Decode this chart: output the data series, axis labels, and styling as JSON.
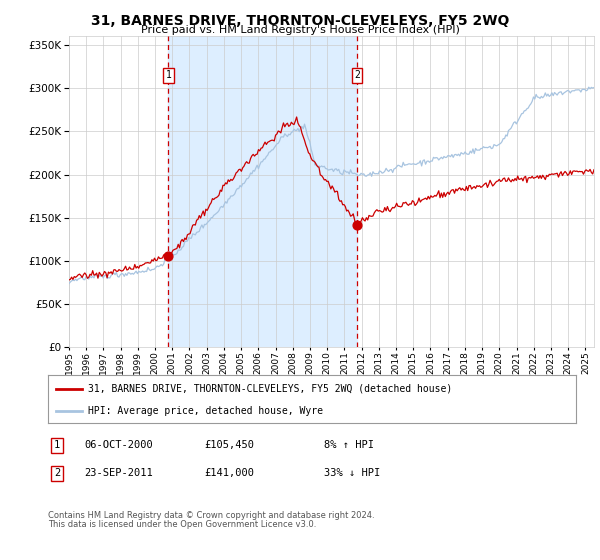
{
  "title": "31, BARNES DRIVE, THORNTON-CLEVELEYS, FY5 2WQ",
  "subtitle": "Price paid vs. HM Land Registry's House Price Index (HPI)",
  "legend_line1": "31, BARNES DRIVE, THORNTON-CLEVELEYS, FY5 2WQ (detached house)",
  "legend_line2": "HPI: Average price, detached house, Wyre",
  "annotation1_date": "06-OCT-2000",
  "annotation1_price": "£105,450",
  "annotation1_hpi": "8% ↑ HPI",
  "annotation2_date": "23-SEP-2011",
  "annotation2_price": "£141,000",
  "annotation2_hpi": "33% ↓ HPI",
  "footnote1": "Contains HM Land Registry data © Crown copyright and database right 2024.",
  "footnote2": "This data is licensed under the Open Government Licence v3.0.",
  "sale1_year": 2000.77,
  "sale1_price": 105450,
  "sale2_year": 2011.73,
  "sale2_price": 141000,
  "hpi_color": "#a8c4e0",
  "price_color": "#cc0000",
  "bg_color": "#ffffff",
  "grid_color": "#cccccc",
  "shade_color": "#ddeeff",
  "dashed_color": "#cc0000",
  "ymax": 360000,
  "ymin": 0,
  "xmin": 1995,
  "xmax": 2025.5
}
